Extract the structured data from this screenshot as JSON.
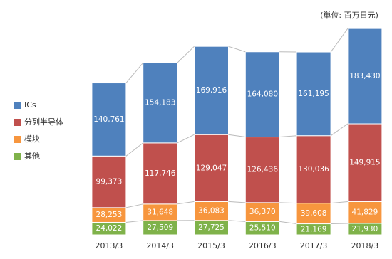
{
  "chart_data": {
    "type": "stacked_bar",
    "unit_note": "(単位: 百万日元)",
    "categories": [
      "2013/3",
      "2014/3",
      "2015/3",
      "2016/3",
      "2017/3",
      "2018/3"
    ],
    "series": [
      {
        "name": "其他",
        "color": "#7fb24a",
        "values": [
          24022,
          27509,
          27725,
          25510,
          21169,
          21930
        ],
        "value_labels": [
          "24,022",
          "27,509",
          "27,725",
          "25,510",
          "21,169",
          "21,930"
        ]
      },
      {
        "name": "模块",
        "color": "#f7963e",
        "values": [
          28253,
          31648,
          36083,
          36370,
          39608,
          41829
        ],
        "value_labels": [
          "28,253",
          "31,648",
          "36,083",
          "36,370",
          "39,608",
          "41,829"
        ]
      },
      {
        "name": "分列半导体",
        "color": "#c0504d",
        "values": [
          99373,
          117746,
          129047,
          126436,
          130036,
          149915
        ],
        "value_labels": [
          "99,373",
          "117,746",
          "129,047",
          "126,436",
          "130,036",
          "149,915"
        ]
      },
      {
        "name": "ICs",
        "color": "#4f81bd",
        "values": [
          140761,
          154183,
          169916,
          164080,
          161195,
          183430
        ],
        "value_labels": [
          "140,761",
          "154,183",
          "169,916",
          "164,080",
          "161,195",
          "183,430"
        ]
      }
    ],
    "ylim": [
      0,
      400000
    ]
  }
}
